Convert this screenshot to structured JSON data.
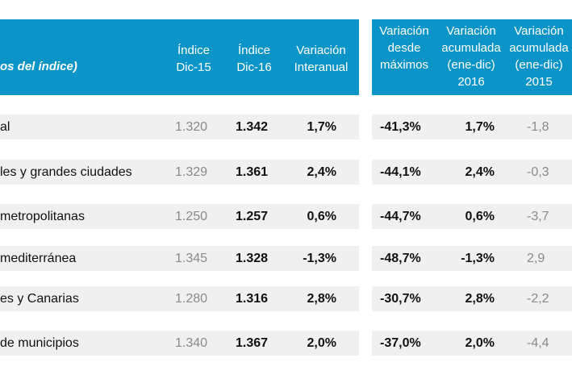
{
  "header": {
    "title": "os del índice)",
    "columns": [
      "Índice\nDic-15",
      "Índice\nDic-16",
      "Variación\nInteranual",
      "Variación\ndesde\nmáximos",
      "Variación\nacumulada\n(ene-dic)\n2016",
      "Variación\nacumulada\n(ene-dic)\n2015"
    ]
  },
  "colors": {
    "header_bg": "#0b94c7",
    "row_bg": "#f0f0f0"
  },
  "rows": [
    {
      "name": "al",
      "dic15": "1.320",
      "dic16": "1.342",
      "interanual": "1,7%",
      "maximos": "-41,3%",
      "acum2016": "1,7%",
      "acum2015": "-1,8"
    },
    {
      "name": "les y grandes ciudades",
      "dic15": "1.329",
      "dic16": "1.361",
      "interanual": "2,4%",
      "maximos": "-44,1%",
      "acum2016": "2,4%",
      "acum2015": "-0,3"
    },
    {
      "name": "metropolitanas",
      "dic15": "1.250",
      "dic16": "1.257",
      "interanual": "0,6%",
      "maximos": "-44,7%",
      "acum2016": "0,6%",
      "acum2015": "-3,7"
    },
    {
      "name": "mediterránea",
      "dic15": "1.345",
      "dic16": "1.328",
      "interanual": "-1,3%",
      "maximos": "-48,7%",
      "acum2016": "-1,3%",
      "acum2015": "2,9"
    },
    {
      "name": "es y Canarias",
      "dic15": "1.280",
      "dic16": "1.316",
      "interanual": "2,8%",
      "maximos": "-30,7%",
      "acum2016": "2,8%",
      "acum2015": "-2,2"
    },
    {
      "name": "de municipios",
      "dic15": "1.340",
      "dic16": "1.367",
      "interanual": "2,0%",
      "maximos": "-37,0%",
      "acum2016": "2,0%",
      "acum2015": "-4,4"
    }
  ]
}
